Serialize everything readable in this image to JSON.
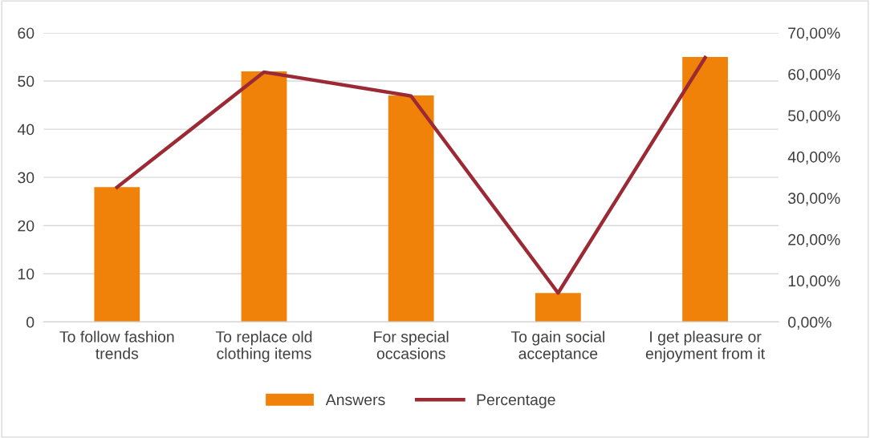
{
  "chart_data": {
    "type": "bar",
    "categories": [
      "To follow fashion\ntrends",
      "To replace old\nclothing items",
      "For special\noccasions",
      "To gain social\nacceptance",
      "I get pleasure or\nenjoyment from it"
    ],
    "series": [
      {
        "name": "Answers",
        "color": "#f0820a",
        "values": [
          28,
          52,
          47,
          6,
          55
        ]
      },
      {
        "name": "Percentage",
        "type": "line",
        "axis": "y2",
        "color": "#9b2a35",
        "values": [
          32.6,
          60.5,
          54.7,
          7,
          64
        ]
      }
    ],
    "ylim": [
      0,
      60
    ],
    "yticks": [
      0,
      10,
      20,
      30,
      40,
      50,
      60
    ],
    "y2lim": [
      0,
      70
    ],
    "y2ticks": [
      {
        "value": 0,
        "label": "0,00%"
      },
      {
        "value": 10,
        "label": "10,00%"
      },
      {
        "value": 20,
        "label": "20,00%"
      },
      {
        "value": 30,
        "label": "30,00%"
      },
      {
        "value": 40,
        "label": "40,00%"
      },
      {
        "value": 50,
        "label": "50,00%"
      },
      {
        "value": 60,
        "label": "60,00%"
      },
      {
        "value": 70,
        "label": "70,00%"
      }
    ],
    "grid": "y",
    "legend": "bottom",
    "marker": "none",
    "line_style": "solid"
  }
}
